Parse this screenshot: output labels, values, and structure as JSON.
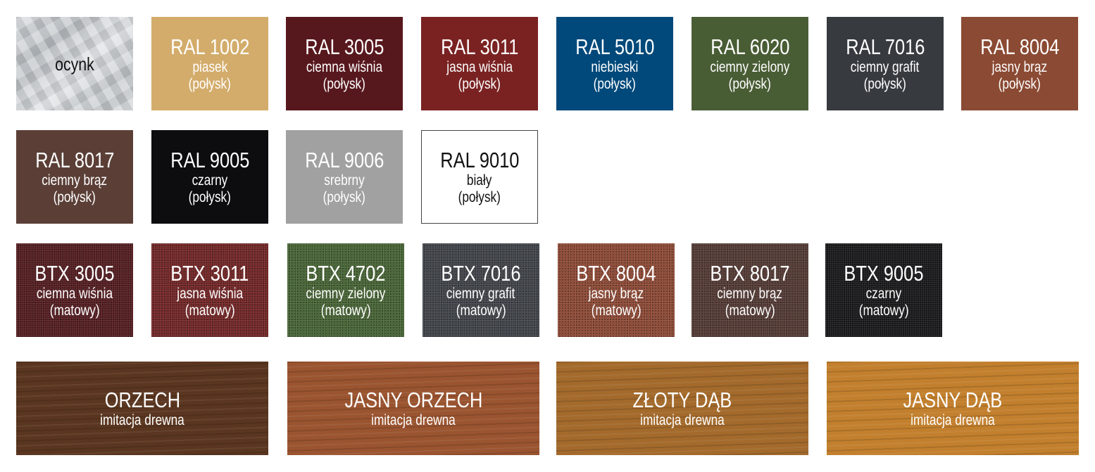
{
  "swatches": [
    {
      "code": "ocynk",
      "name": "",
      "finish": "",
      "color": "#c6cacd",
      "dark": true
    },
    {
      "code": "RAL 1002",
      "name": "piasek",
      "finish": "(połysk)",
      "color": "#d3ac6b"
    },
    {
      "code": "RAL 3005",
      "name": "ciemna wiśnia",
      "finish": "(połysk)",
      "color": "#57181d"
    },
    {
      "code": "RAL 3011",
      "name": "jasna wiśnia",
      "finish": "(połysk)",
      "color": "#7a2222"
    },
    {
      "code": "RAL 5010",
      "name": "niebieski",
      "finish": "(połysk)",
      "color": "#00497a"
    },
    {
      "code": "RAL 6020",
      "name": "ciemny zielony",
      "finish": "(połysk)",
      "color": "#495d35"
    },
    {
      "code": "RAL 7016",
      "name": "ciemny grafit",
      "finish": "(połysk)",
      "color": "#373b3f"
    },
    {
      "code": "RAL 8004",
      "name": "jasny brąz",
      "finish": "(połysk)",
      "color": "#8b4a33"
    },
    {
      "code": "RAL 8017",
      "name": "ciemny brąz",
      "finish": "(połysk)",
      "color": "#5b3f37"
    },
    {
      "code": "RAL 9005",
      "name": "czarny",
      "finish": "(połysk)",
      "color": "#0d0d0f"
    },
    {
      "code": "RAL 9006",
      "name": "srebrny",
      "finish": "(połysk)",
      "color": "#a1a1a1"
    },
    {
      "code": "RAL 9010",
      "name": "biały",
      "finish": "(połysk)",
      "color": "#ffffff",
      "dark": true
    },
    {
      "code": "BTX 3005",
      "name": "ciemna wiśnia",
      "finish": "(matowy)",
      "color": "#4e1519"
    },
    {
      "code": "BTX 3011",
      "name": "jasna wiśnia",
      "finish": "(matowy)",
      "color": "#6e1e1e"
    },
    {
      "code": "BTX 4702",
      "name": "ciemny zielony",
      "finish": "(matowy)",
      "color": "#42602f"
    },
    {
      "code": "BTX 7016",
      "name": "ciemny grafit",
      "finish": "(matowy)",
      "color": "#3a3e44"
    },
    {
      "code": "BTX 8004",
      "name": "jasny brąz",
      "finish": "(matowy)",
      "color": "#8a4430"
    },
    {
      "code": "BTX 8017",
      "name": "ciemny brąz",
      "finish": "(matowy)",
      "color": "#4e342e"
    },
    {
      "code": "BTX 9005",
      "name": "czarny",
      "finish": "(matowy)",
      "color": "#111113"
    }
  ],
  "woods": [
    {
      "code": "ORZECH",
      "name": "imitacja drewna",
      "color": "#5a3620"
    },
    {
      "code": "JASNY ORZECH",
      "name": "imitacja drewna",
      "color": "#9a5430"
    },
    {
      "code": "ZŁOTY DĄB",
      "name": "imitacja drewna",
      "color": "#a36a2c"
    },
    {
      "code": "JASNY DĄB",
      "name": "imitacja drewna",
      "color": "#c2802e"
    }
  ]
}
